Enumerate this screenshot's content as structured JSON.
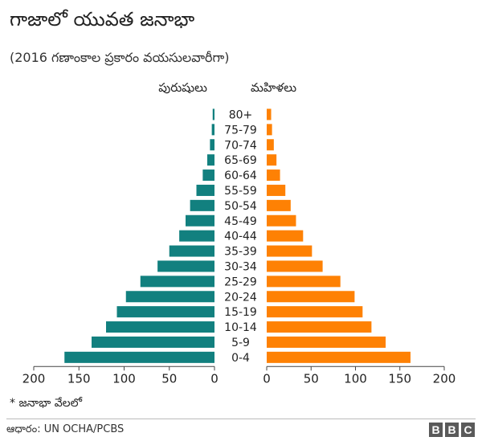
{
  "title": "గాజాలో యువత జనాభా",
  "subtitle": "(2016 గణాంకాల ప్రకారం వయసులవారీగా)",
  "note": "* జనాభా వేలలో",
  "source": "ఆధారం: UN OCHA/PCBS",
  "logo": [
    "B",
    "B",
    "C"
  ],
  "colors": {
    "male": "#12807f",
    "female": "#fe8104"
  },
  "chart_data": {
    "type": "bar",
    "orientation": "horizontal-butterfly",
    "categories": [
      "80+",
      "75-79",
      "70-74",
      "65-69",
      "60-64",
      "55-59",
      "50-54",
      "45-49",
      "40-44",
      "35-39",
      "30-34",
      "25-29",
      "20-24",
      "15-19",
      "10-14",
      "5-9",
      "0-4"
    ],
    "series": [
      {
        "name": "పురుషులు",
        "side": "left",
        "values": [
          2,
          3,
          5,
          8,
          13,
          20,
          27,
          32,
          39,
          50,
          63,
          82,
          98,
          108,
          120,
          136,
          166
        ]
      },
      {
        "name": "మహిళలు",
        "side": "right",
        "values": [
          5,
          6,
          8,
          11,
          15,
          21,
          27,
          33,
          41,
          51,
          63,
          83,
          99,
          108,
          118,
          134,
          162
        ]
      }
    ],
    "xlim": [
      0,
      200
    ],
    "xticks": [
      "0",
      "50",
      "100",
      "150",
      "200"
    ],
    "grid": false
  }
}
